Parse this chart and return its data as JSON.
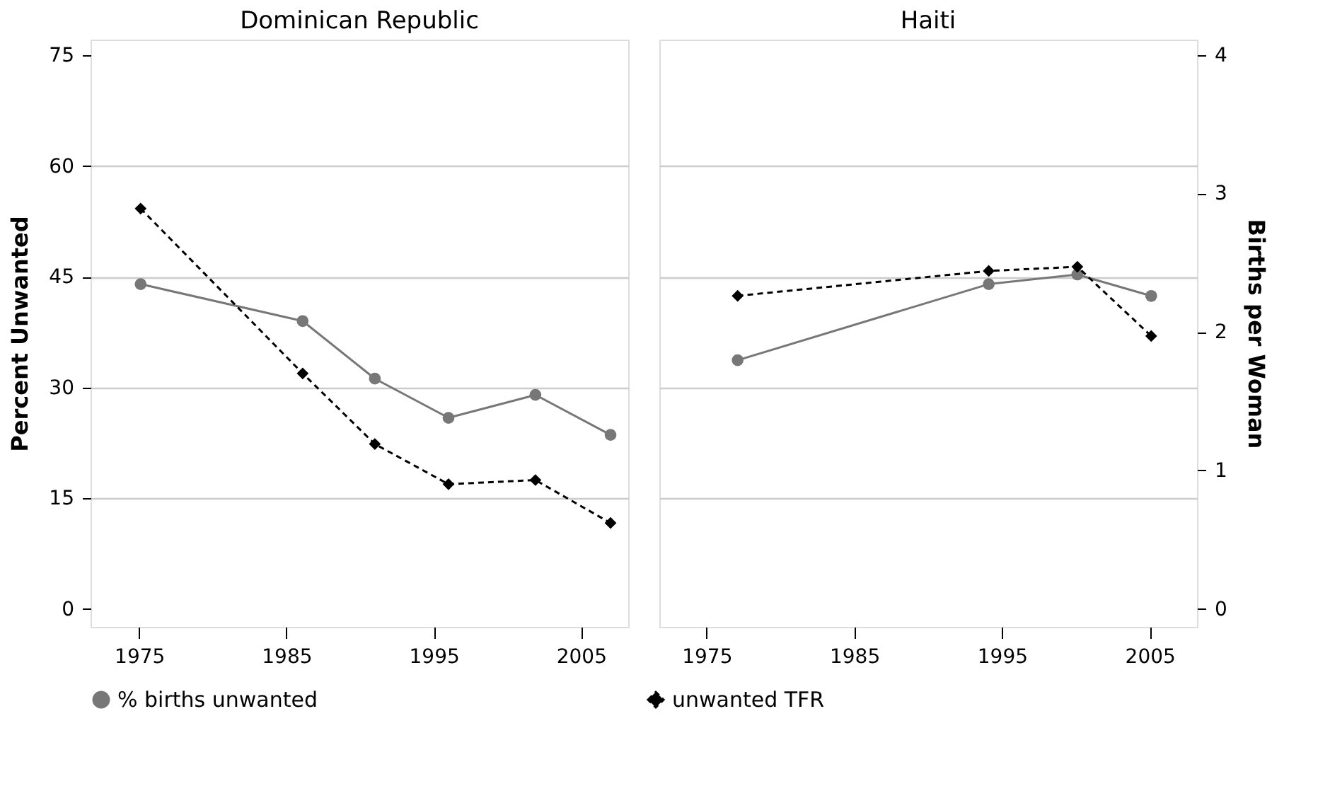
{
  "chart_data": [
    {
      "type": "line",
      "title": "Dominican Republic",
      "ylabel": "Percent Unwanted",
      "xlim": [
        1971.7,
        2008.2
      ],
      "xticks": [
        1975,
        1985,
        1995,
        2005
      ],
      "ylim": [
        -2.4,
        77.1
      ],
      "yticks": [
        0,
        15,
        30,
        45,
        60,
        75
      ],
      "y2lim": [
        -0.13,
        4.11
      ],
      "grid": "y",
      "legend": "bottom",
      "series": [
        {
          "name": "% births unwanted",
          "color": "#777777",
          "marker": "circle",
          "line_style": "solid",
          "x": [
            1975.1,
            1986.1,
            1991.0,
            1996.0,
            2001.9,
            2007.0
          ],
          "values": [
            44.0,
            39.0,
            31.2,
            25.9,
            29.0,
            23.6
          ]
        },
        {
          "name": "unwanted TFR",
          "color": "#000000",
          "marker": "diamond",
          "line_style": "dashed",
          "axis": "y2",
          "x": [
            1975.1,
            1986.1,
            1991.0,
            1996.0,
            2001.9,
            2007.0
          ],
          "values": [
            2.89,
            1.7,
            1.19,
            0.9,
            0.93,
            0.62
          ]
        }
      ]
    },
    {
      "type": "line",
      "title": "Haiti",
      "y2label": "Births per Woman",
      "xlim": [
        1971.8,
        2008.2
      ],
      "xticks": [
        1975,
        1985,
        1995,
        2005
      ],
      "ylim": [
        -2.4,
        77.1
      ],
      "y2lim": [
        -0.13,
        4.11
      ],
      "y2ticks": [
        0,
        1,
        2,
        3,
        4
      ],
      "grid": "y",
      "legend": "bottom",
      "series": [
        {
          "name": "% births unwanted",
          "color": "#777777",
          "marker": "circle",
          "line_style": "solid",
          "x": [
            1977.1,
            1994.1,
            2000.1,
            2005.1
          ],
          "values": [
            33.7,
            44.0,
            45.3,
            42.4
          ]
        },
        {
          "name": "unwanted TFR",
          "color": "#000000",
          "marker": "diamond",
          "line_style": "dashed",
          "axis": "y2",
          "x": [
            1977.1,
            1994.1,
            2000.1,
            2005.1
          ],
          "values": [
            2.26,
            2.44,
            2.47,
            1.97
          ]
        }
      ]
    }
  ]
}
